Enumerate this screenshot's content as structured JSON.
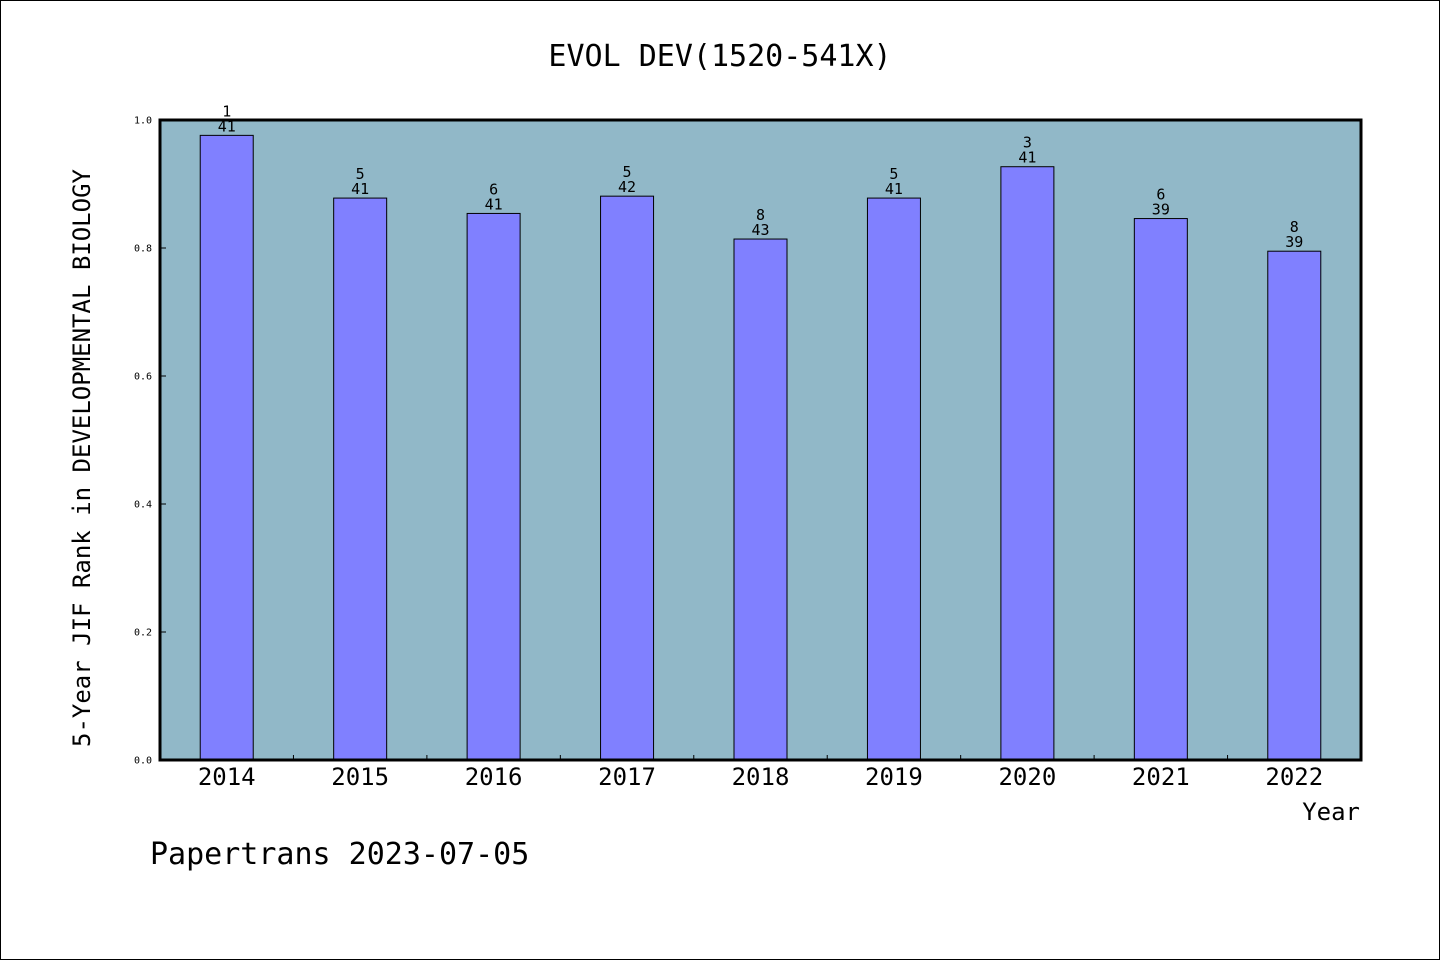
{
  "chart_data": {
    "type": "bar",
    "title": "EVOL DEV(1520-541X)",
    "xlabel": "Year",
    "ylabel": "5-Year JIF Rank in DEVELOPMENTAL BIOLOGY",
    "categories": [
      "2014",
      "2015",
      "2016",
      "2017",
      "2018",
      "2019",
      "2020",
      "2021",
      "2022"
    ],
    "values": [
      0.976,
      0.878,
      0.854,
      0.881,
      0.814,
      0.878,
      0.927,
      0.846,
      0.795
    ],
    "ranks": [
      "1",
      "5",
      "6",
      "5",
      "8",
      "5",
      "3",
      "6",
      "8"
    ],
    "totals": [
      "41",
      "41",
      "41",
      "42",
      "43",
      "41",
      "41",
      "39",
      "39"
    ],
    "ylim": [
      0.0,
      1.0
    ],
    "yticks": [
      "0.0",
      "0.2",
      "0.4",
      "0.6",
      "0.8",
      "1.0"
    ],
    "grid": false,
    "legend": "none",
    "colors": {
      "plot_background": "#91b8c8",
      "bar_fill": "#8080ff",
      "bar_edge": "#000000"
    }
  },
  "footer": "Papertrans 2023-07-05"
}
